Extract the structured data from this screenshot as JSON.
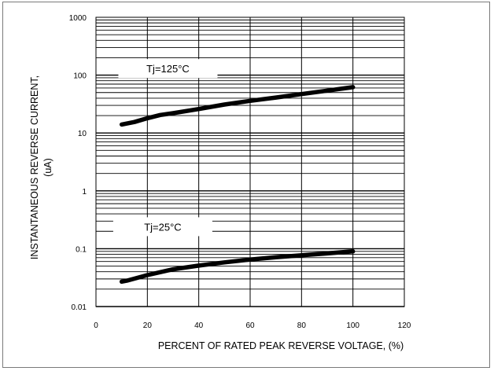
{
  "chart_data": {
    "type": "line",
    "title": "",
    "xlabel": "PERCENT OF RATED PEAK REVERSE VOLTAGE, (%)",
    "ylabel_line1": "INSTANTANEOUS REVERSE CURRENT,",
    "ylabel_line2": "(uA)",
    "xlim": [
      0,
      120
    ],
    "ylim": [
      0.01,
      1000
    ],
    "yscale": "log",
    "grid": true,
    "x_ticks": [
      0,
      20,
      40,
      60,
      80,
      100,
      120
    ],
    "x_tick_labels": [
      "0",
      "20",
      "40",
      "60",
      "80",
      "100",
      "120"
    ],
    "y_ticks": [
      0.01,
      0.1,
      1,
      10,
      100,
      1000
    ],
    "y_tick_labels": [
      "0.01",
      "0.1",
      "1",
      "10",
      "100",
      "1000"
    ],
    "series": [
      {
        "label": "Tj=125°C",
        "x": [
          10,
          15,
          20,
          25,
          30,
          40,
          50,
          60,
          70,
          80,
          90,
          100
        ],
        "y": [
          14,
          15.5,
          18,
          20.5,
          22,
          26,
          31,
          36,
          41,
          47,
          54,
          62
        ]
      },
      {
        "label": "Tj=25°C",
        "x": [
          10,
          12,
          20,
          30,
          40,
          50,
          60,
          70,
          80,
          90,
          100
        ],
        "y": [
          0.027,
          0.028,
          0.035,
          0.044,
          0.051,
          0.058,
          0.065,
          0.071,
          0.077,
          0.083,
          0.09
        ]
      }
    ],
    "annotations": [
      {
        "text": "Tj=125°C",
        "x": 28,
        "y": 130
      },
      {
        "text": "Tj=25°C",
        "x": 26,
        "y": 0.24
      }
    ],
    "colors": {
      "line": "#000000",
      "grid": "#000000",
      "background": "#ffffff"
    }
  }
}
